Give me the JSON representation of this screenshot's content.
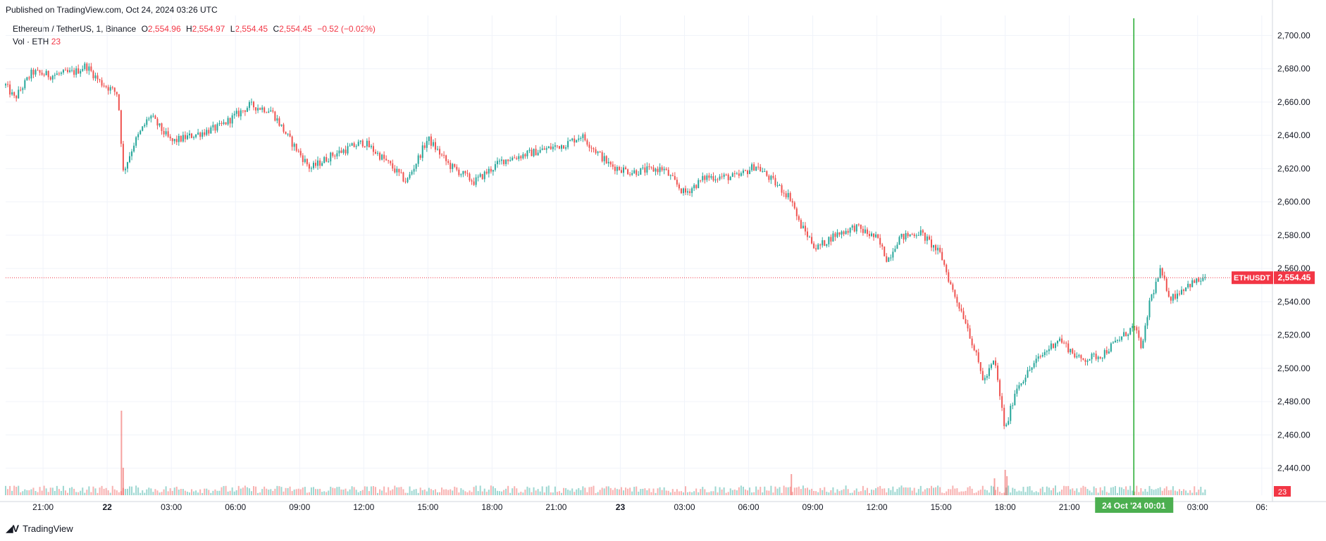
{
  "header": {
    "published": "Published on TradingView.com, Oct 24, 2024 03:26 UTC"
  },
  "legend": {
    "symbol": "Ethereum / TetherUS, 1, Binance",
    "o_label": "O",
    "o_value": "2,554.96",
    "h_label": "H",
    "h_value": "2,554.97",
    "l_label": "L",
    "l_value": "2,554.45",
    "c_label": "C",
    "c_value": "2,554.45",
    "change": "−0.52 (−0.02%)",
    "vol_label": "Vol · ETH",
    "vol_value": "23"
  },
  "footer": {
    "brand": "TradingView",
    "logo": "tradingview-logo-icon"
  },
  "colors": {
    "up": "#26a69a",
    "down": "#ef5350",
    "crosshair": "#22ab2e",
    "price_tag": "#f23645",
    "grid": "#f0f3fa"
  },
  "chart_data": {
    "type": "candlestick",
    "symbol": "ETHUSDT",
    "interval": "1 minute",
    "x_range": [
      "2024-10-21 19:15",
      "2024-10-24 06:30"
    ],
    "ylim": [
      2428,
      2712
    ],
    "y_ticks": [
      "2,440.00",
      "2,460.00",
      "2,480.00",
      "2,500.00",
      "2,520.00",
      "2,540.00",
      "2,560.00",
      "2,580.00",
      "2,600.00",
      "2,620.00",
      "2,640.00",
      "2,660.00",
      "2,680.00",
      "2,700.00"
    ],
    "y_tick_values": [
      2440,
      2460,
      2480,
      2500,
      2520,
      2540,
      2560,
      2580,
      2600,
      2620,
      2640,
      2660,
      2680,
      2700
    ],
    "x_ticks": [
      {
        "label": "21:00",
        "hours": 21,
        "bold": false
      },
      {
        "label": "22",
        "hours": 24,
        "bold": true
      },
      {
        "label": "03:00",
        "hours": 27,
        "bold": false
      },
      {
        "label": "06:00",
        "hours": 30,
        "bold": false
      },
      {
        "label": "09:00",
        "hours": 33,
        "bold": false
      },
      {
        "label": "12:00",
        "hours": 36,
        "bold": false
      },
      {
        "label": "15:00",
        "hours": 39,
        "bold": false
      },
      {
        "label": "18:00",
        "hours": 42,
        "bold": false
      },
      {
        "label": "21:00",
        "hours": 45,
        "bold": false
      },
      {
        "label": "23",
        "hours": 48,
        "bold": true
      },
      {
        "label": "03:00",
        "hours": 51,
        "bold": false
      },
      {
        "label": "06:00",
        "hours": 54,
        "bold": false
      },
      {
        "label": "09:00",
        "hours": 57,
        "bold": false
      },
      {
        "label": "12:00",
        "hours": 60,
        "bold": false
      },
      {
        "label": "15:00",
        "hours": 63,
        "bold": false
      },
      {
        "label": "18:00",
        "hours": 66,
        "bold": false
      },
      {
        "label": "21:00",
        "hours": 69,
        "bold": false
      },
      {
        "label": "03:00",
        "hours": 75,
        "bold": false
      },
      {
        "label": "06:",
        "hours": 78,
        "bold": false
      }
    ],
    "price_path": [
      {
        "t": "2024-10-21 19:15",
        "p": 2670
      },
      {
        "t": "2024-10-21 19:40",
        "p": 2662
      },
      {
        "t": "2024-10-21 20:30",
        "p": 2678
      },
      {
        "t": "2024-10-21 21:20",
        "p": 2676
      },
      {
        "t": "2024-10-21 22:30",
        "p": 2678
      },
      {
        "t": "2024-10-21 23:00",
        "p": 2682
      },
      {
        "t": "2024-10-21 23:40",
        "p": 2672
      },
      {
        "t": "2024-10-22 00:30",
        "p": 2665
      },
      {
        "t": "2024-10-22 00:45",
        "p": 2618
      },
      {
        "t": "2024-10-22 01:15",
        "p": 2635
      },
      {
        "t": "2024-10-22 02:00",
        "p": 2652
      },
      {
        "t": "2024-10-22 03:00",
        "p": 2636
      },
      {
        "t": "2024-10-22 04:00",
        "p": 2640
      },
      {
        "t": "2024-10-22 05:15",
        "p": 2645
      },
      {
        "t": "2024-10-22 06:40",
        "p": 2658
      },
      {
        "t": "2024-10-22 07:40",
        "p": 2655
      },
      {
        "t": "2024-10-22 08:30",
        "p": 2638
      },
      {
        "t": "2024-10-22 09:30",
        "p": 2620
      },
      {
        "t": "2024-10-22 10:30",
        "p": 2628
      },
      {
        "t": "2024-10-22 12:00",
        "p": 2636
      },
      {
        "t": "2024-10-22 13:00",
        "p": 2625
      },
      {
        "t": "2024-10-22 14:00",
        "p": 2612
      },
      {
        "t": "2024-10-22 15:00",
        "p": 2638
      },
      {
        "t": "2024-10-22 16:00",
        "p": 2622
      },
      {
        "t": "2024-10-22 17:10",
        "p": 2612
      },
      {
        "t": "2024-10-22 18:30",
        "p": 2625
      },
      {
        "t": "2024-10-22 20:00",
        "p": 2630
      },
      {
        "t": "2024-10-22 21:30",
        "p": 2635
      },
      {
        "t": "2024-10-22 22:10",
        "p": 2640
      },
      {
        "t": "2024-10-22 23:30",
        "p": 2622
      },
      {
        "t": "2024-10-23 00:30",
        "p": 2618
      },
      {
        "t": "2024-10-23 02:00",
        "p": 2620
      },
      {
        "t": "2024-10-23 03:00",
        "p": 2605
      },
      {
        "t": "2024-10-23 04:00",
        "p": 2615
      },
      {
        "t": "2024-10-23 05:30",
        "p": 2615
      },
      {
        "t": "2024-10-23 06:20",
        "p": 2622
      },
      {
        "t": "2024-10-23 07:30",
        "p": 2608
      },
      {
        "t": "2024-10-23 08:00",
        "p": 2602
      },
      {
        "t": "2024-10-23 08:20",
        "p": 2588
      },
      {
        "t": "2024-10-23 09:10",
        "p": 2572
      },
      {
        "t": "2024-10-23 10:00",
        "p": 2580
      },
      {
        "t": "2024-10-23 11:00",
        "p": 2585
      },
      {
        "t": "2024-10-23 12:00",
        "p": 2578
      },
      {
        "t": "2024-10-23 12:30",
        "p": 2565
      },
      {
        "t": "2024-10-23 13:00",
        "p": 2578
      },
      {
        "t": "2024-10-23 14:00",
        "p": 2582
      },
      {
        "t": "2024-10-23 14:30",
        "p": 2575
      },
      {
        "t": "2024-10-23 15:00",
        "p": 2568
      },
      {
        "t": "2024-10-23 15:30",
        "p": 2548
      },
      {
        "t": "2024-10-23 16:10",
        "p": 2528
      },
      {
        "t": "2024-10-23 17:00",
        "p": 2492
      },
      {
        "t": "2024-10-23 17:30",
        "p": 2505
      },
      {
        "t": "2024-10-23 18:00",
        "p": 2462
      },
      {
        "t": "2024-10-23 18:30",
        "p": 2488
      },
      {
        "t": "2024-10-23 19:30",
        "p": 2505
      },
      {
        "t": "2024-10-23 20:30",
        "p": 2518
      },
      {
        "t": "2024-10-23 21:30",
        "p": 2505
      },
      {
        "t": "2024-10-23 22:30",
        "p": 2508
      },
      {
        "t": "2024-10-24 00:00",
        "p": 2525
      },
      {
        "t": "2024-10-24 00:25",
        "p": 2512
      },
      {
        "t": "2024-10-24 00:45",
        "p": 2540
      },
      {
        "t": "2024-10-24 01:15",
        "p": 2558
      },
      {
        "t": "2024-10-24 01:45",
        "p": 2542
      },
      {
        "t": "2024-10-24 02:30",
        "p": 2550
      },
      {
        "t": "2024-10-24 03:26",
        "p": 2554.45
      }
    ],
    "volume_spikes": [
      {
        "t": "2024-10-22 00:40",
        "v": 400
      },
      {
        "t": "2024-10-22 00:45",
        "v": 130
      },
      {
        "t": "2024-10-23 08:00",
        "v": 100
      },
      {
        "t": "2024-10-23 17:30",
        "v": 80
      },
      {
        "t": "2024-10-23 18:00",
        "v": 120
      },
      {
        "t": "2024-10-23 18:05",
        "v": 90
      }
    ],
    "last_price": {
      "label": "ETHUSDT",
      "value": "2,554.45",
      "price": 2554.45
    },
    "crosshair": {
      "t": "2024-10-24 00:01",
      "label": "24 Oct '24   00:01"
    },
    "volume_last": "23",
    "grid": true
  }
}
